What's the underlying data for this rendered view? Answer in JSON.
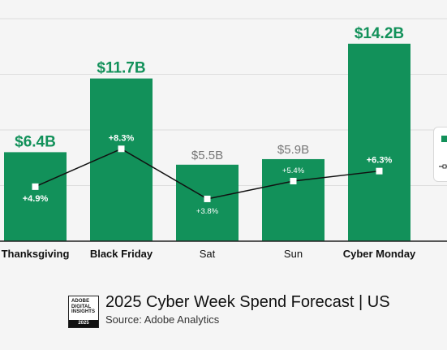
{
  "chart_data": {
    "type": "bar",
    "title": "2025 Cyber Week Spend Forecast | US",
    "source": "Source: Adobe Analytics",
    "categories": [
      "Thanksgiving",
      "Black Friday",
      "Sat",
      "Sun",
      "Cyber Monday"
    ],
    "highlighted_categories": [
      "Thanksgiving",
      "Black Friday",
      "Cyber Monday"
    ],
    "series": [
      {
        "values": [
          6.4,
          11.7,
          5.5,
          5.9,
          14.2
        ],
        "labels": [
          "$6.4B",
          "$11.7B",
          "$5.5B",
          "$5.9B",
          "$14.2B"
        ]
      },
      {
        "type": "line",
        "values": [
          4.9,
          8.3,
          3.8,
          5.4,
          6.3
        ],
        "labels": [
          "+4.9%",
          "+8.3%",
          "+3.8%",
          "+5.4%",
          "+6.3%"
        ]
      }
    ],
    "ylim": [
      0,
      16
    ],
    "line_ylim": [
      0,
      20
    ],
    "grid": true
  },
  "badge": {
    "lines": [
      "ADOBE",
      "DIGITAL",
      "INSIGHTS"
    ],
    "year": "2025"
  },
  "colors": {
    "bar": "#12915a",
    "highlight_label": "#12915a",
    "muted_label": "#777777",
    "line": "#111111",
    "grid": "#dddddd",
    "axis": "#222222"
  }
}
